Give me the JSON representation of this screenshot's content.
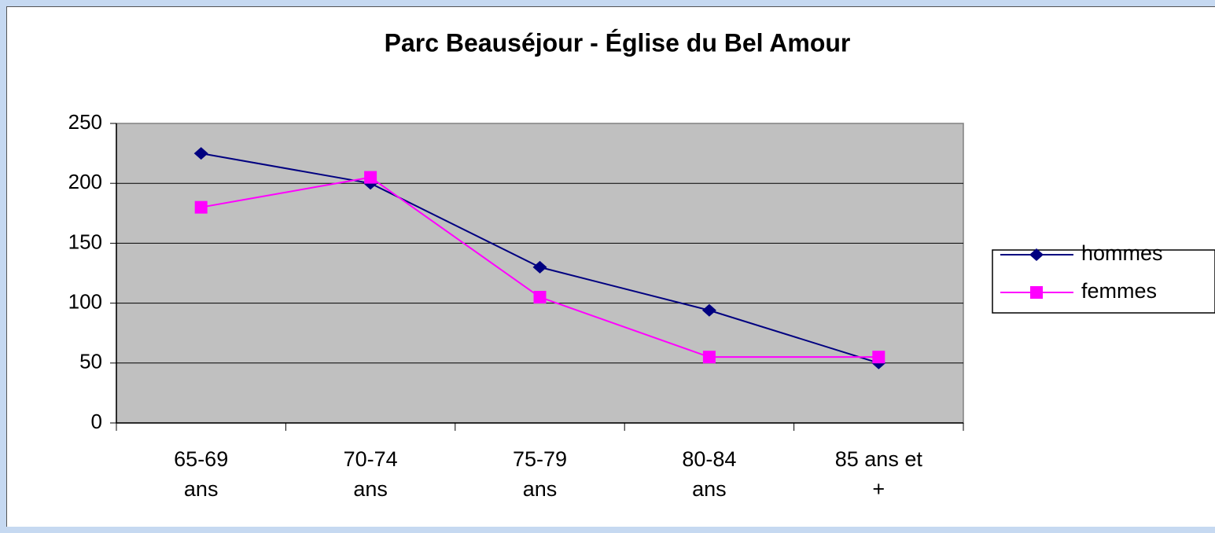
{
  "chart_data": {
    "type": "line",
    "title": "Parc Beauséjour - Église du Bel Amour",
    "categories": [
      "65-69 ans",
      "70-74 ans",
      "75-79 ans",
      "80-84 ans",
      "85 ans et +"
    ],
    "series": [
      {
        "name": "hommes",
        "color": "#000080",
        "marker": "diamond",
        "values": [
          225,
          200,
          130,
          94,
          50
        ]
      },
      {
        "name": "femmes",
        "color": "#ff00ff",
        "marker": "square",
        "values": [
          180,
          205,
          105,
          55,
          55
        ]
      }
    ],
    "ylim": [
      0,
      250
    ],
    "yticks": [
      0,
      50,
      100,
      150,
      200,
      250
    ],
    "grid": true,
    "legend": "right"
  }
}
